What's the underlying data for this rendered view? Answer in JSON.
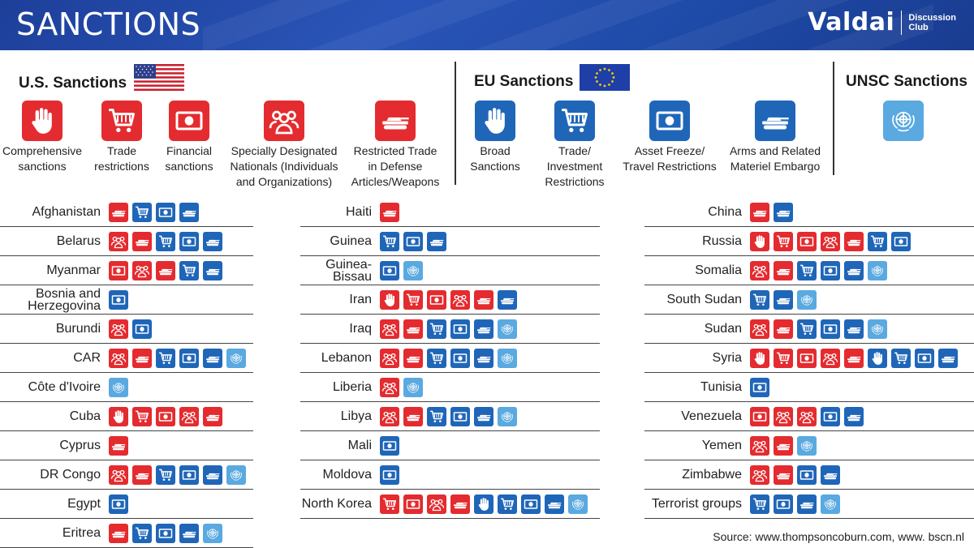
{
  "header": {
    "title": "SANCTIONS",
    "brand": "Valdai",
    "brand_sub_1": "Discussion",
    "brand_sub_2": "Club"
  },
  "legend": {
    "us": {
      "title": "U.S. Sanctions",
      "items": [
        {
          "key": "hand",
          "color": "red",
          "label": "Comprehensive sanctions"
        },
        {
          "key": "cart",
          "color": "red",
          "label": "Trade restrictions"
        },
        {
          "key": "money",
          "color": "red",
          "label": "Financial sanctions"
        },
        {
          "key": "people",
          "color": "red",
          "label": "Specially Designated Nationals (Individuals and Organizations)"
        },
        {
          "key": "tank",
          "color": "red",
          "label": "Restricted Trade in Defense Articles/Weapons"
        }
      ]
    },
    "eu": {
      "title": "EU Sanctions",
      "items": [
        {
          "key": "hand",
          "color": "blue",
          "label": "Broad Sanctions"
        },
        {
          "key": "cart",
          "color": "blue",
          "label": "Trade/ Investment Restrictions"
        },
        {
          "key": "money",
          "color": "blue",
          "label": "Asset Freeze/ Travel Restrictions"
        },
        {
          "key": "tank",
          "color": "blue",
          "label": "Arms and Related Materiel Embargo"
        }
      ]
    },
    "unsc": {
      "title": "UNSC Sanctions",
      "items": [
        {
          "key": "un",
          "color": "un"
        }
      ]
    }
  },
  "colors": {
    "us_red": "#e42b2f",
    "eu_blue": "#1f66b8",
    "un_light_blue": "#5aa9e0",
    "banner": "#1e4aa8"
  },
  "columns": [
    [
      {
        "name": "Afghanistan",
        "icons": [
          "r-tank",
          "b-cart",
          "b-money",
          "b-tank"
        ]
      },
      {
        "name": "Belarus",
        "icons": [
          "r-people",
          "r-tank",
          "b-cart",
          "b-money",
          "b-tank"
        ]
      },
      {
        "name": "Myanmar",
        "icons": [
          "r-money",
          "r-people",
          "r-tank",
          "b-cart",
          "b-tank"
        ]
      },
      {
        "name": "Bosnia and Herzegovina",
        "icons": [
          "b-money"
        ]
      },
      {
        "name": "Burundi",
        "icons": [
          "r-people",
          "b-money"
        ]
      },
      {
        "name": "CAR",
        "icons": [
          "r-people",
          "r-tank",
          "b-cart",
          "b-money",
          "b-tank",
          "un"
        ]
      },
      {
        "name": "Côte d'Ivoire",
        "icons": [
          "un"
        ]
      },
      {
        "name": "Cuba",
        "icons": [
          "r-hand",
          "r-cart",
          "r-money",
          "r-people",
          "r-tank"
        ]
      },
      {
        "name": "Cyprus",
        "icons": [
          "r-tank"
        ]
      },
      {
        "name": "DR Congo",
        "icons": [
          "r-people",
          "r-tank",
          "b-cart",
          "b-money",
          "b-tank",
          "un"
        ]
      },
      {
        "name": "Egypt",
        "icons": [
          "b-money"
        ]
      },
      {
        "name": "Eritrea",
        "icons": [
          "r-tank",
          "b-cart",
          "b-money",
          "b-tank",
          "un"
        ]
      }
    ],
    [
      {
        "name": "Haiti",
        "icons": [
          "r-tank"
        ]
      },
      {
        "name": "Guinea",
        "icons": [
          "b-cart",
          "b-money",
          "b-tank"
        ]
      },
      {
        "name": "Guinea-Bissau",
        "icons": [
          "b-money",
          "un"
        ]
      },
      {
        "name": "Iran",
        "icons": [
          "r-hand",
          "r-cart",
          "r-money",
          "r-people",
          "r-tank",
          "b-tank"
        ]
      },
      {
        "name": "Iraq",
        "icons": [
          "r-people",
          "r-tank",
          "b-cart",
          "b-money",
          "b-tank",
          "un"
        ]
      },
      {
        "name": "Lebanon",
        "icons": [
          "r-people",
          "r-tank",
          "b-cart",
          "b-money",
          "b-tank",
          "un"
        ]
      },
      {
        "name": "Liberia",
        "icons": [
          "r-people",
          "un"
        ]
      },
      {
        "name": "Libya",
        "icons": [
          "r-people",
          "r-tank",
          "b-cart",
          "b-money",
          "b-tank",
          "un"
        ]
      },
      {
        "name": "Mali",
        "icons": [
          "b-money"
        ]
      },
      {
        "name": "Moldova",
        "icons": [
          "b-money"
        ]
      },
      {
        "name": "North Korea",
        "icons": [
          "r-cart",
          "r-money",
          "r-people",
          "r-tank",
          "b-hand",
          "b-cart",
          "b-money",
          "b-tank",
          "un"
        ]
      }
    ],
    [
      {
        "name": "China",
        "icons": [
          "r-tank",
          "b-tank"
        ]
      },
      {
        "name": "Russia",
        "icons": [
          "r-hand",
          "r-cart",
          "r-money",
          "r-people",
          "r-tank",
          "b-cart",
          "b-money"
        ]
      },
      {
        "name": "Somalia",
        "icons": [
          "r-people",
          "r-tank",
          "b-cart",
          "b-money",
          "b-tank",
          "un"
        ]
      },
      {
        "name": "South Sudan",
        "icons": [
          "b-cart",
          "b-tank",
          "un"
        ]
      },
      {
        "name": "Sudan",
        "icons": [
          "r-people",
          "r-tank",
          "b-cart",
          "b-money",
          "b-tank",
          "un"
        ]
      },
      {
        "name": "Syria",
        "icons": [
          "r-hand",
          "r-cart",
          "r-money",
          "r-people",
          "r-tank",
          "b-hand",
          "b-cart",
          "b-money",
          "b-tank"
        ]
      },
      {
        "name": "Tunisia",
        "icons": [
          "b-money"
        ]
      },
      {
        "name": "Venezuela",
        "icons": [
          "r-money",
          "r-people",
          "r-people",
          "b-money",
          "b-tank"
        ]
      },
      {
        "name": "Yemen",
        "icons": [
          "r-people",
          "r-tank",
          "un"
        ]
      },
      {
        "name": "Zimbabwe",
        "icons": [
          "r-people",
          "r-tank",
          "b-money",
          "b-tank"
        ]
      },
      {
        "name": "Terrorist groups",
        "icons": [
          "b-cart",
          "b-money",
          "b-tank",
          "un"
        ]
      }
    ]
  ],
  "footer": {
    "source": "Source: www.thompsoncoburn.com, www. bscn.nl"
  }
}
